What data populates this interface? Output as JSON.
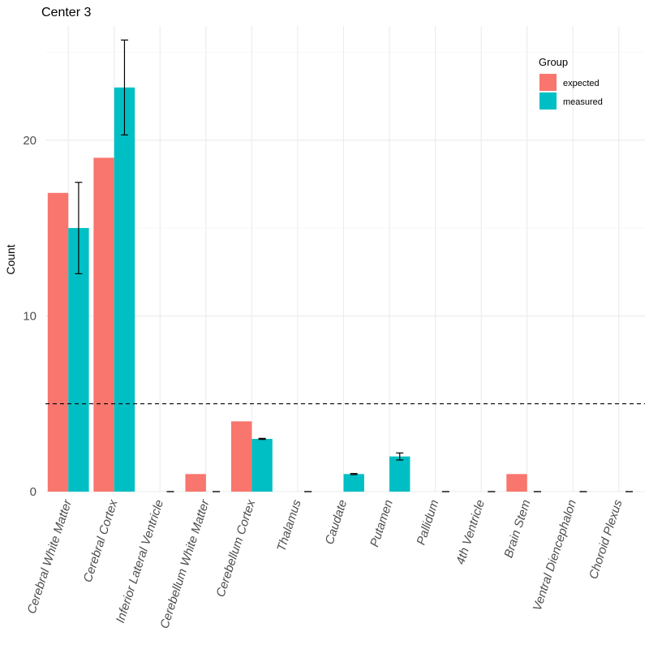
{
  "chart_data": {
    "type": "bar",
    "title": "Center 3",
    "xlabel": "",
    "ylabel": "Count",
    "ylim": [
      0,
      26.5
    ],
    "yticks": [
      0,
      10,
      20
    ],
    "reference_line": 5,
    "categories": [
      "Cerebral White Matter",
      "Cerebral Cortex",
      "Inferior Lateral Ventricle",
      "Cerebellum White Matter",
      "Cerebellum Cortex",
      "Thalamus",
      "Caudate",
      "Putamen",
      "Pallidum",
      "4th Ventricle",
      "Brain Stem",
      "Ventral Diencephalon",
      "Choroid Plexus"
    ],
    "series": [
      {
        "name": "expected",
        "color": "#F8766D",
        "values": [
          17,
          19,
          0,
          1,
          4,
          0,
          0,
          0,
          0,
          0,
          1,
          0,
          0
        ]
      },
      {
        "name": "measured",
        "color": "#00BFC4",
        "values": [
          15,
          23,
          0,
          0,
          3,
          0,
          1,
          2,
          0,
          0,
          0,
          0,
          0
        ],
        "error_low": [
          12.4,
          20.3,
          0,
          0,
          2.97,
          0,
          0.97,
          1.8,
          0,
          0,
          0,
          0,
          0
        ],
        "error_high": [
          17.6,
          25.7,
          0,
          0,
          3.03,
          0,
          1.03,
          2.2,
          0,
          0,
          0,
          0,
          0
        ]
      }
    ],
    "legend": {
      "title": "Group",
      "position": "top-right"
    }
  }
}
